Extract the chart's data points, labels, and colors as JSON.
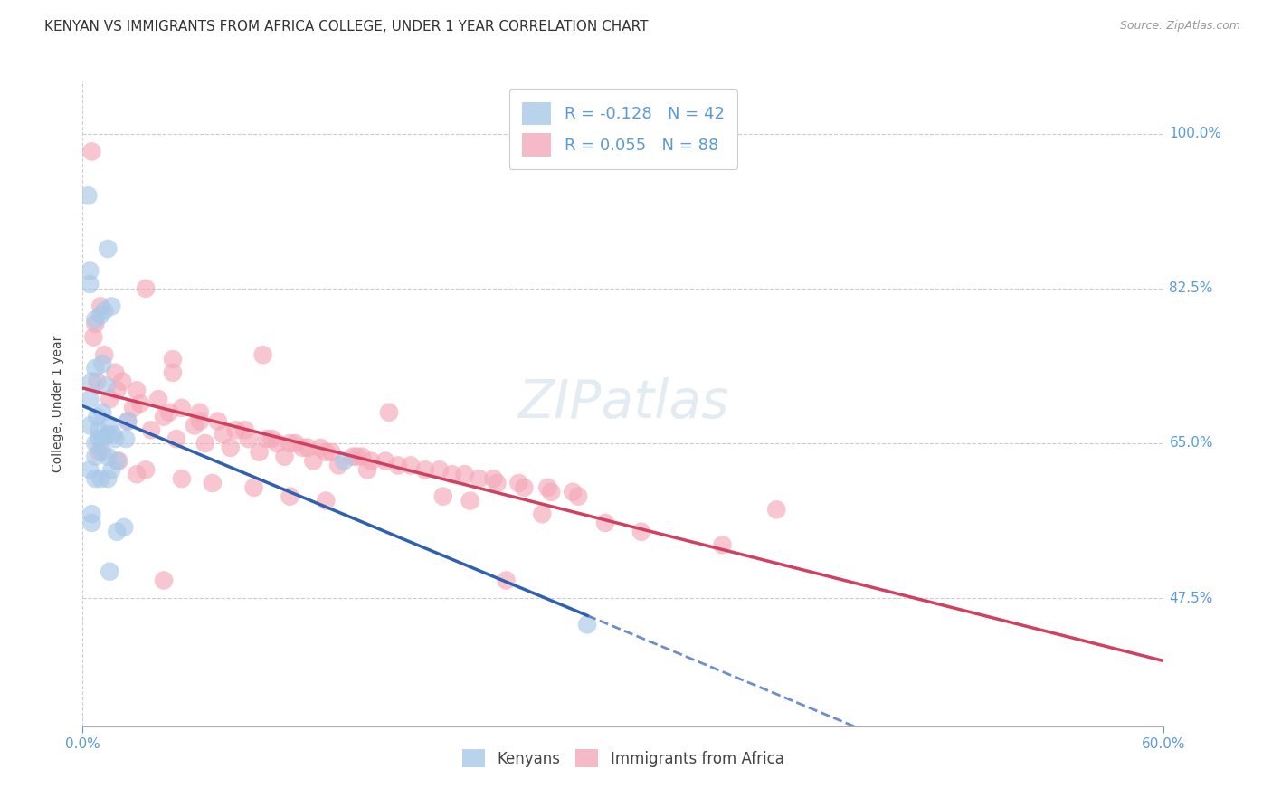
{
  "title": "KENYAN VS IMMIGRANTS FROM AFRICA COLLEGE, UNDER 1 YEAR CORRELATION CHART",
  "source": "Source: ZipAtlas.com",
  "ylabel": "College, Under 1 year",
  "right_yticks": [
    47.5,
    65.0,
    82.5,
    100.0
  ],
  "right_ytick_labels": [
    "47.5%",
    "65.0%",
    "82.5%",
    "100.0%"
  ],
  "xlim": [
    0.0,
    60.0
  ],
  "ylim": [
    33.0,
    106.0
  ],
  "legend_blue_r": "R = -0.128",
  "legend_blue_n": "N = 42",
  "legend_pink_r": "R = 0.055",
  "legend_pink_n": "N = 88",
  "blue_color": "#a8c8e8",
  "pink_color": "#f4a8b8",
  "trend_blue_color": "#3060b0",
  "trend_pink_color": "#d04060",
  "background_color": "#ffffff",
  "grid_color": "#cccccc",
  "axis_color": "#5b9bd5",
  "title_fontsize": 11,
  "label_fontsize": 10,
  "tick_fontsize": 11,
  "blue_scatter_x": [
    0.3,
    1.2,
    1.6,
    1.4,
    0.4,
    0.4,
    1.0,
    0.7,
    0.7,
    1.1,
    1.3,
    0.5,
    0.4,
    1.1,
    0.8,
    2.5,
    1.5,
    0.4,
    0.9,
    1.7,
    1.8,
    1.4,
    1.1,
    0.9,
    0.7,
    2.4,
    1.4,
    1.1,
    0.4,
    0.7,
    1.9,
    1.4,
    0.7,
    1.6,
    1.0,
    0.5,
    2.3,
    1.9,
    1.5,
    0.5,
    14.5,
    28.0
  ],
  "blue_scatter_y": [
    93.0,
    80.0,
    80.5,
    87.0,
    84.5,
    83.0,
    79.5,
    79.0,
    73.5,
    74.0,
    71.5,
    72.0,
    70.0,
    68.5,
    68.0,
    67.5,
    67.0,
    67.0,
    66.5,
    66.0,
    65.5,
    66.0,
    65.5,
    65.5,
    65.0,
    65.5,
    63.5,
    64.0,
    62.0,
    63.5,
    63.0,
    61.0,
    61.0,
    62.0,
    61.0,
    56.0,
    55.5,
    55.0,
    50.5,
    57.0,
    63.0,
    44.5
  ],
  "pink_scatter_x": [
    17.0,
    0.5,
    3.5,
    1.0,
    0.7,
    0.6,
    1.2,
    5.0,
    1.8,
    2.2,
    3.0,
    4.2,
    5.5,
    6.5,
    7.5,
    9.0,
    10.5,
    11.5,
    12.5,
    13.5,
    15.0,
    16.0,
    17.5,
    19.0,
    20.5,
    22.0,
    23.0,
    24.5,
    26.0,
    27.5,
    2.5,
    3.8,
    5.2,
    6.8,
    8.2,
    9.8,
    11.2,
    12.8,
    14.2,
    15.8,
    1.5,
    2.8,
    4.5,
    6.2,
    7.8,
    9.2,
    10.8,
    12.2,
    13.8,
    15.2,
    16.8,
    18.2,
    19.8,
    21.2,
    22.8,
    24.2,
    25.8,
    27.2,
    0.8,
    1.9,
    3.2,
    4.8,
    6.5,
    8.5,
    10.2,
    11.8,
    13.2,
    15.5,
    0.9,
    2.0,
    3.5,
    5.5,
    7.2,
    9.5,
    11.5,
    13.5,
    31.0,
    20.0,
    35.5,
    21.5,
    25.5,
    29.0,
    10.0,
    5.0,
    4.5,
    3.0,
    23.5,
    38.5
  ],
  "pink_scatter_y": [
    68.5,
    98.0,
    82.5,
    80.5,
    78.5,
    77.0,
    75.0,
    74.5,
    73.0,
    72.0,
    71.0,
    70.0,
    69.0,
    68.5,
    67.5,
    66.5,
    65.5,
    65.0,
    64.5,
    64.0,
    63.5,
    63.0,
    62.5,
    62.0,
    61.5,
    61.0,
    60.5,
    60.0,
    59.5,
    59.0,
    67.5,
    66.5,
    65.5,
    65.0,
    64.5,
    64.0,
    63.5,
    63.0,
    62.5,
    62.0,
    70.0,
    69.0,
    68.0,
    67.0,
    66.0,
    65.5,
    65.0,
    64.5,
    64.0,
    63.5,
    63.0,
    62.5,
    62.0,
    61.5,
    61.0,
    60.5,
    60.0,
    59.5,
    72.0,
    71.0,
    69.5,
    68.5,
    67.5,
    66.5,
    65.5,
    65.0,
    64.5,
    63.5,
    64.0,
    63.0,
    62.0,
    61.0,
    60.5,
    60.0,
    59.0,
    58.5,
    55.0,
    59.0,
    53.5,
    58.5,
    57.0,
    56.0,
    75.0,
    73.0,
    49.5,
    61.5,
    49.5,
    57.5
  ]
}
